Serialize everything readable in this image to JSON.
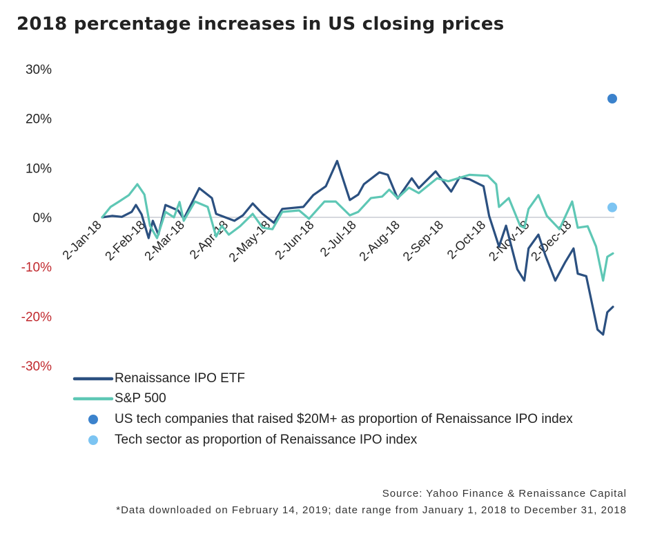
{
  "title": "2018 percentage increases in US closing prices",
  "chart_data": {
    "type": "line",
    "title": "2018 percentage increases in US closing prices",
    "xlabel": "",
    "ylabel": "",
    "ylim": [
      -30,
      30
    ],
    "xlim": [
      "2018-01-02",
      "2018-12-31"
    ],
    "yticks": [
      30,
      20,
      10,
      0,
      -10,
      -20,
      -30
    ],
    "ytick_labels": [
      "30%",
      "20%",
      "10%",
      "0%",
      "-10%",
      "-20%",
      "-30%"
    ],
    "negative_tick_color": "#c0282d",
    "xticks": [
      "2018-01-02",
      "2018-02-02",
      "2018-03-02",
      "2018-04-02",
      "2018-05-02",
      "2018-06-02",
      "2018-07-02",
      "2018-08-02",
      "2018-09-02",
      "2018-10-02",
      "2018-11-02",
      "2018-12-02"
    ],
    "xtick_labels": [
      "2-Jan-18",
      "2-Feb-18",
      "2-Mar-18",
      "2-Apr-18",
      "2-May-18",
      "2-Jun-18",
      "2-Jul-18",
      "2-Aug-18",
      "2-Sep-18",
      "2-Oct-18",
      "2-Nov-18",
      "2-Dec-18"
    ],
    "grid": false,
    "zero_line": true,
    "legend_position": "bottom-left",
    "series": [
      {
        "name": "Renaissance IPO ETF",
        "kind": "line",
        "color": "#2b5080",
        "x": [
          "2018-01-02",
          "2018-01-09",
          "2018-01-16",
          "2018-01-23",
          "2018-01-26",
          "2018-01-30",
          "2018-02-04",
          "2018-02-07",
          "2018-02-11",
          "2018-02-16",
          "2018-02-25",
          "2018-03-01",
          "2018-03-12",
          "2018-03-21",
          "2018-03-24",
          "2018-04-06",
          "2018-04-12",
          "2018-04-19",
          "2018-04-26",
          "2018-05-04",
          "2018-05-10",
          "2018-05-25",
          "2018-06-01",
          "2018-06-10",
          "2018-06-18",
          "2018-06-27",
          "2018-07-03",
          "2018-07-07",
          "2018-07-18",
          "2018-07-24",
          "2018-07-31",
          "2018-08-10",
          "2018-08-15",
          "2018-08-27",
          "2018-09-07",
          "2018-09-13",
          "2018-09-20",
          "2018-09-30",
          "2018-10-04",
          "2018-10-11",
          "2018-10-16",
          "2018-10-24",
          "2018-10-29",
          "2018-11-01",
          "2018-11-08",
          "2018-11-13",
          "2018-11-20",
          "2018-11-27",
          "2018-12-03",
          "2018-12-06",
          "2018-12-12",
          "2018-12-20",
          "2018-12-24",
          "2018-12-27",
          "2018-12-31"
        ],
        "values": [
          0,
          0.3,
          0.1,
          1.1,
          2.5,
          0.6,
          -4.2,
          -0.7,
          -3.5,
          2.5,
          1.4,
          -0.3,
          5.9,
          3.9,
          0.7,
          -0.7,
          0.4,
          2.8,
          0.7,
          -1.1,
          1.7,
          2.1,
          4.5,
          6.3,
          11.4,
          3.5,
          4.6,
          6.7,
          9.1,
          8.6,
          3.8,
          7.9,
          5.9,
          9.3,
          5.2,
          8.1,
          7.7,
          6.3,
          0.3,
          -5.9,
          -1.7,
          -10.5,
          -12.8,
          -6.3,
          -3.5,
          -7.7,
          -12.8,
          -9.1,
          -6.3,
          -11.4,
          -11.9,
          -22.7,
          -23.7,
          -19.2,
          -18.1
        ]
      },
      {
        "name": "S&P 500",
        "kind": "line",
        "color": "#5ec7b5",
        "x": [
          "2018-01-02",
          "2018-01-08",
          "2018-01-14",
          "2018-01-21",
          "2018-01-27",
          "2018-02-01",
          "2018-02-05",
          "2018-02-10",
          "2018-02-16",
          "2018-02-22",
          "2018-02-26",
          "2018-03-01",
          "2018-03-09",
          "2018-03-18",
          "2018-03-24",
          "2018-03-28",
          "2018-04-02",
          "2018-04-10",
          "2018-04-19",
          "2018-04-26",
          "2018-05-03",
          "2018-05-10",
          "2018-05-22",
          "2018-05-29",
          "2018-06-09",
          "2018-06-17",
          "2018-06-27",
          "2018-07-03",
          "2018-07-12",
          "2018-07-20",
          "2018-07-25",
          "2018-07-31",
          "2018-08-08",
          "2018-08-15",
          "2018-08-28",
          "2018-09-05",
          "2018-09-20",
          "2018-10-03",
          "2018-10-09",
          "2018-10-11",
          "2018-10-18",
          "2018-10-26",
          "2018-10-29",
          "2018-11-01",
          "2018-11-08",
          "2018-11-14",
          "2018-11-23",
          "2018-12-02",
          "2018-12-06",
          "2018-12-13",
          "2018-12-19",
          "2018-12-24",
          "2018-12-27",
          "2018-12-31"
        ],
        "values": [
          0,
          2.1,
          3.2,
          4.5,
          6.7,
          4.6,
          -1.7,
          -4.2,
          1.1,
          0,
          3.1,
          -0.7,
          3.2,
          2.1,
          -3.9,
          -1.7,
          -3.5,
          -1.8,
          0.7,
          -2.1,
          -2.4,
          1.1,
          1.4,
          -0.3,
          3.2,
          3.2,
          0.4,
          1.1,
          3.9,
          4.2,
          5.6,
          3.9,
          6.0,
          4.9,
          7.9,
          7.3,
          8.6,
          8.4,
          6.7,
          2.1,
          3.9,
          -1.7,
          -2.1,
          1.7,
          4.5,
          0.3,
          -2.4,
          3.2,
          -2.1,
          -1.8,
          -5.9,
          -12.8,
          -8.0,
          -7.3
        ]
      },
      {
        "name": "US tech companies that raised $20M+ as proportion of Renaissance IPO index",
        "kind": "point",
        "color": "#3b82cc",
        "x": [
          "2018-12-31"
        ],
        "values": [
          24
        ]
      },
      {
        "name": "Tech sector as proportion of Renaissance IPO index",
        "kind": "point",
        "color": "#7cc4f2",
        "x": [
          "2018-12-31"
        ],
        "values": [
          2
        ]
      }
    ]
  },
  "source": "Source: Yahoo Finance & Renaissance Capital",
  "footnote": "*Data downloaded on February 14, 2019; date range from January 1, 2018 to December 31, 2018"
}
